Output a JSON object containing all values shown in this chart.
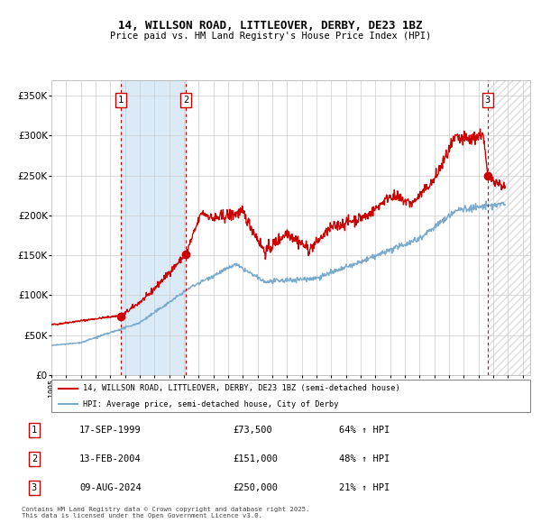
{
  "title": "14, WILLSON ROAD, LITTLEOVER, DERBY, DE23 1BZ",
  "subtitle": "Price paid vs. HM Land Registry's House Price Index (HPI)",
  "purchases": [
    {
      "label": "1",
      "date_num": 1999.72,
      "price": 73500
    },
    {
      "label": "2",
      "date_num": 2004.12,
      "price": 151000
    },
    {
      "label": "3",
      "date_num": 2024.61,
      "price": 250000
    }
  ],
  "purchase_info": [
    {
      "num": "1",
      "date": "17-SEP-1999",
      "price": "£73,500",
      "hpi": "64% ↑ HPI"
    },
    {
      "num": "2",
      "date": "13-FEB-2004",
      "price": "£151,000",
      "hpi": "48% ↑ HPI"
    },
    {
      "num": "3",
      "date": "09-AUG-2024",
      "price": "£250,000",
      "hpi": "21% ↑ HPI"
    }
  ],
  "legend_line1": "14, WILLSON ROAD, LITTLEOVER, DERBY, DE23 1BZ (semi-detached house)",
  "legend_line2": "HPI: Average price, semi-detached house, City of Derby",
  "footer": "Contains HM Land Registry data © Crown copyright and database right 2025.\nThis data is licensed under the Open Government Licence v3.0.",
  "line_color": "#cc0000",
  "hpi_color": "#7aaacc",
  "dot_color": "#cc0000",
  "shade_color": "#daeaf7",
  "hatch_color": "#dddddd",
  "ylim": [
    0,
    370000
  ],
  "xlim_start": 1995.0,
  "xlim_end": 2027.5,
  "future_start": 2024.61,
  "purchase_dates": [
    1999.72,
    2004.12,
    2024.61
  ],
  "purchase_prices": [
    73500,
    151000,
    250000
  ]
}
